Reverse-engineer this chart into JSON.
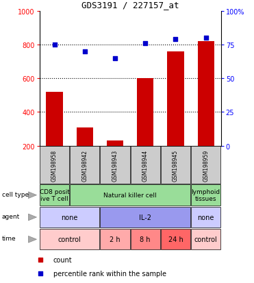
{
  "title": "GDS3191 / 227157_at",
  "samples": [
    "GSM198958",
    "GSM198942",
    "GSM198943",
    "GSM198944",
    "GSM198945",
    "GSM198959"
  ],
  "counts": [
    520,
    310,
    230,
    600,
    760,
    820
  ],
  "percentiles": [
    75,
    70,
    65,
    76,
    79,
    80
  ],
  "ylim_left": [
    200,
    1000
  ],
  "ylim_right": [
    0,
    100
  ],
  "yticks_left": [
    200,
    400,
    600,
    800,
    1000
  ],
  "yticks_right": [
    0,
    25,
    50,
    75,
    100
  ],
  "bar_color": "#cc0000",
  "dot_color": "#0000cc",
  "dotted_lines": [
    400,
    600,
    800
  ],
  "cell_type_data": [
    {
      "label": "CD8 posit\nive T cell",
      "span": [
        0,
        1
      ],
      "color": "#99dd99"
    },
    {
      "label": "Natural killer cell",
      "span": [
        1,
        5
      ],
      "color": "#99dd99"
    },
    {
      "label": "lymphoid\ntissues",
      "span": [
        5,
        6
      ],
      "color": "#99dd99"
    }
  ],
  "agent_data": [
    {
      "label": "none",
      "span": [
        0,
        2
      ],
      "color": "#ccccff"
    },
    {
      "label": "IL-2",
      "span": [
        2,
        5
      ],
      "color": "#9999ee"
    },
    {
      "label": "none",
      "span": [
        5,
        6
      ],
      "color": "#ccccff"
    }
  ],
  "time_data": [
    {
      "label": "control",
      "span": [
        0,
        2
      ],
      "color": "#ffcccc"
    },
    {
      "label": "2 h",
      "span": [
        2,
        3
      ],
      "color": "#ffaaaa"
    },
    {
      "label": "8 h",
      "span": [
        3,
        4
      ],
      "color": "#ff8888"
    },
    {
      "label": "24 h",
      "span": [
        4,
        5
      ],
      "color": "#ff6666"
    },
    {
      "label": "control",
      "span": [
        5,
        6
      ],
      "color": "#ffcccc"
    }
  ],
  "row_labels": [
    "cell type",
    "agent",
    "time"
  ],
  "sample_box_color": "#cccccc",
  "legend_count_color": "#cc0000",
  "legend_pct_color": "#0000cc"
}
